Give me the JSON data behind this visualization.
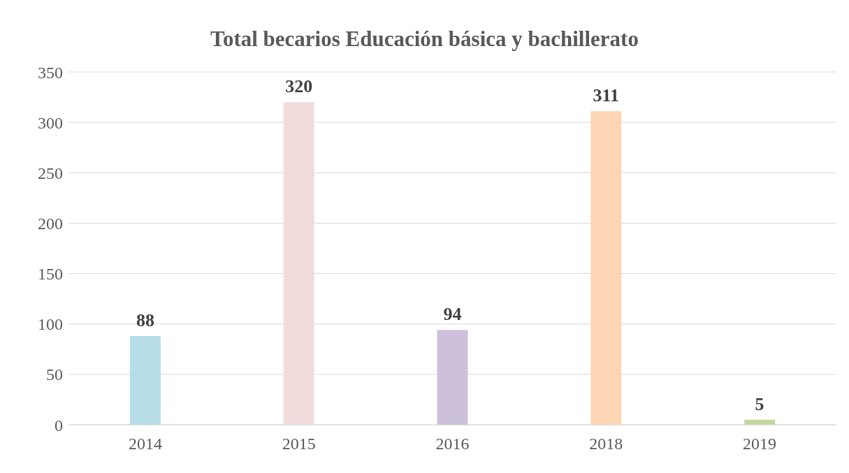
{
  "chart_data": {
    "type": "bar",
    "title": "Total becarios Educación básica y bachillerato",
    "categories": [
      "2014",
      "2015",
      "2016",
      "2018",
      "2019"
    ],
    "values": [
      88,
      320,
      94,
      311,
      5
    ],
    "colors": [
      "#b7dde8",
      "#f2dcdb",
      "#ccc0da",
      "#fcd5b4",
      "#c3d69b"
    ],
    "ylim": [
      0,
      350
    ],
    "yticks": [
      0,
      50,
      100,
      150,
      200,
      250,
      300,
      350
    ],
    "grid": "y",
    "data_labels": true
  }
}
